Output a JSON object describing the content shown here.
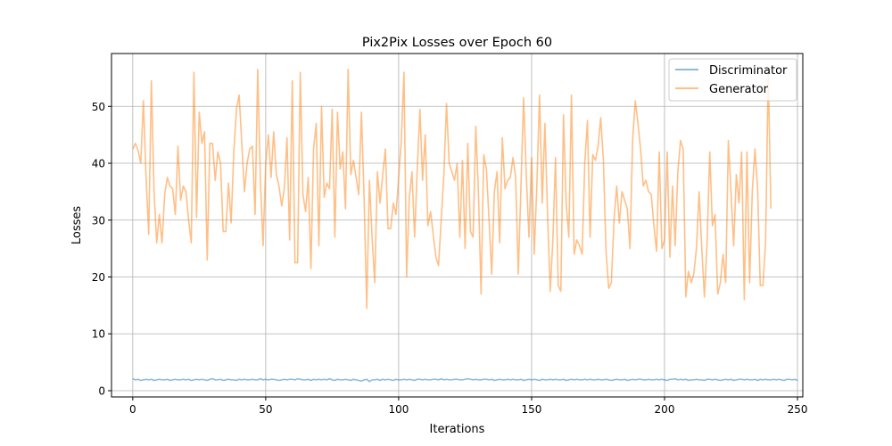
{
  "chart_data": {
    "type": "line",
    "title": "Pix2Pix Losses over Epoch 60",
    "xlabel": "Iterations",
    "ylabel": "Losses",
    "xlim": [
      -8,
      252
    ],
    "ylim": [
      -1.1,
      59.3
    ],
    "xticks": [
      0,
      50,
      100,
      150,
      200,
      250
    ],
    "yticks": [
      0,
      10,
      20,
      30,
      40,
      50
    ],
    "grid": true,
    "legend": "upper right",
    "series": [
      {
        "name": "Discriminator",
        "color": "#1f77b4",
        "alpha": 0.5,
        "x_start": 0,
        "values": [
          2.1,
          1.9,
          2.0,
          1.8,
          1.9,
          2.0,
          1.9,
          2.0,
          1.8,
          1.9,
          2.0,
          1.9,
          1.9,
          2.0,
          1.8,
          1.9,
          2.0,
          1.9,
          1.9,
          2.0,
          1.9,
          2.0,
          1.8,
          1.9,
          2.0,
          1.9,
          2.0,
          1.9,
          1.8,
          2.0,
          2.1,
          1.9,
          1.9,
          2.0,
          1.8,
          1.9,
          2.0,
          1.9,
          1.9,
          1.8,
          2.0,
          1.9,
          2.0,
          1.9,
          1.9,
          2.0,
          1.9,
          1.9,
          2.1,
          1.9,
          2.0,
          1.9,
          2.0,
          2.0,
          1.9,
          1.8,
          1.9,
          2.0,
          1.9,
          2.0,
          2.0,
          1.9,
          2.1,
          2.0,
          1.9,
          1.9,
          2.0,
          1.8,
          2.0,
          1.9,
          2.0,
          1.9,
          2.0,
          1.9,
          2.1,
          1.9,
          1.8,
          2.0,
          1.9,
          1.9,
          2.0,
          1.9,
          1.8,
          2.0,
          1.9,
          1.8,
          1.7,
          1.9,
          2.0,
          1.6,
          1.9,
          1.9,
          2.0,
          1.8,
          2.0,
          1.9,
          2.0,
          1.9,
          1.8,
          2.0,
          1.9,
          1.9,
          2.0,
          1.9,
          2.0,
          1.9,
          1.8,
          2.0,
          2.0,
          1.9,
          2.0,
          1.9,
          1.9,
          2.0,
          2.0,
          1.9,
          2.1,
          1.9,
          2.0,
          1.9,
          1.9,
          2.0,
          2.0,
          1.9,
          1.9,
          2.0,
          2.1,
          2.0,
          1.9,
          2.0,
          1.9,
          1.9,
          2.0,
          2.0,
          1.9,
          2.0,
          1.8,
          1.9,
          2.0,
          1.9,
          1.9,
          2.0,
          1.9,
          2.0,
          1.9,
          1.9,
          2.0,
          1.8,
          1.9,
          2.0,
          1.9,
          2.0,
          1.9,
          1.8,
          2.0,
          1.9,
          1.9,
          2.0,
          1.9,
          2.0,
          1.9,
          1.9,
          2.0,
          1.8,
          1.9,
          2.0,
          1.9,
          2.0,
          1.9,
          1.9,
          2.0,
          1.9,
          2.0,
          1.9,
          1.9,
          2.0,
          1.9,
          1.9,
          2.0,
          1.9,
          1.8,
          1.9,
          2.0,
          1.9,
          1.9,
          2.0,
          1.8,
          1.9,
          2.0,
          1.9,
          2.0,
          2.0,
          1.9,
          1.9,
          2.0,
          1.9,
          1.9,
          2.0,
          1.9,
          2.0,
          1.9,
          1.8,
          2.0,
          2.0,
          2.1,
          1.9,
          2.0,
          1.9,
          2.0,
          1.8,
          1.9,
          1.9,
          2.0,
          1.9,
          1.9,
          1.8,
          2.0,
          2.0,
          1.9,
          2.0,
          1.9,
          1.8,
          1.9,
          2.0,
          1.9,
          2.0,
          1.8,
          1.9,
          2.0,
          2.0,
          1.9,
          2.0,
          1.9,
          1.9,
          2.0,
          1.8,
          2.0,
          1.9,
          2.0,
          1.9,
          1.9,
          2.0,
          1.9,
          2.0,
          1.9,
          1.8,
          2.0,
          2.0,
          1.9,
          2.0,
          1.8
        ]
      },
      {
        "name": "Generator",
        "color": "#ff7f0e",
        "alpha": 0.5,
        "x_start": 0,
        "values": [
          42.5,
          43.5,
          42.2,
          40.0,
          51.0,
          37.5,
          27.5,
          54.5,
          35.0,
          26.0,
          31.0,
          26.0,
          34.5,
          37.5,
          36.0,
          35.5,
          31.0,
          43.0,
          33.5,
          36.0,
          35.0,
          30.0,
          26.0,
          56.0,
          30.5,
          49.0,
          43.5,
          45.5,
          23.0,
          43.5,
          43.5,
          37.0,
          42.0,
          40.0,
          28.0,
          28.0,
          36.5,
          29.5,
          42.0,
          49.5,
          52.0,
          43.5,
          35.0,
          40.0,
          42.5,
          43.0,
          31.0,
          56.5,
          37.0,
          25.5,
          40.0,
          45.0,
          37.5,
          45.5,
          38.0,
          36.0,
          32.5,
          35.5,
          44.5,
          26.5,
          54.5,
          22.5,
          22.5,
          56.0,
          34.5,
          31.5,
          37.5,
          21.5,
          42.5,
          47.0,
          25.5,
          50.0,
          34.0,
          36.5,
          35.5,
          49.5,
          27.0,
          49.0,
          39.0,
          42.0,
          32.0,
          56.5,
          38.0,
          40.5,
          37.5,
          34.5,
          49.0,
          34.0,
          14.5,
          37.0,
          27.0,
          19.0,
          38.5,
          33.0,
          38.0,
          42.5,
          28.5,
          28.5,
          33.0,
          31.0,
          37.5,
          44.0,
          56.0,
          20.0,
          34.0,
          38.5,
          27.0,
          39.0,
          49.5,
          37.0,
          45.0,
          29.0,
          31.5,
          27.5,
          23.5,
          22.0,
          30.0,
          38.0,
          50.5,
          40.0,
          38.5,
          37.0,
          40.0,
          27.0,
          40.5,
          25.0,
          43.5,
          28.0,
          27.0,
          46.5,
          35.0,
          17.0,
          41.5,
          39.0,
          30.0,
          20.5,
          35.0,
          38.5,
          26.0,
          44.5,
          35.5,
          37.0,
          37.5,
          41.0,
          37.5,
          20.5,
          36.0,
          51.5,
          38.0,
          27.0,
          41.0,
          24.0,
          36.5,
          52.0,
          33.0,
          47.0,
          31.0,
          17.5,
          26.5,
          41.0,
          18.5,
          17.5,
          48.5,
          33.0,
          27.0,
          52.0,
          24.0,
          26.5,
          25.5,
          24.0,
          40.0,
          47.5,
          27.0,
          41.5,
          40.5,
          43.0,
          48.0,
          40.5,
          24.5,
          18.0,
          19.0,
          30.0,
          36.0,
          29.5,
          35.0,
          33.5,
          32.0,
          25.0,
          44.0,
          51.0,
          47.0,
          42.5,
          36.0,
          37.0,
          35.0,
          34.5,
          29.0,
          24.5,
          42.0,
          25.0,
          26.5,
          42.0,
          23.5,
          36.0,
          25.5,
          38.5,
          44.0,
          42.5,
          16.5,
          21.0,
          19.0,
          20.5,
          25.0,
          35.0,
          25.0,
          16.5,
          26.0,
          42.0,
          29.0,
          31.0,
          17.0,
          19.0,
          24.0,
          19.0,
          44.0,
          35.0,
          25.5,
          38.0,
          33.0,
          42.0,
          16.0,
          42.0,
          19.0,
          35.0,
          42.5,
          35.5,
          18.5,
          18.5,
          26.0,
          56.0,
          32.0
        ]
      }
    ]
  }
}
